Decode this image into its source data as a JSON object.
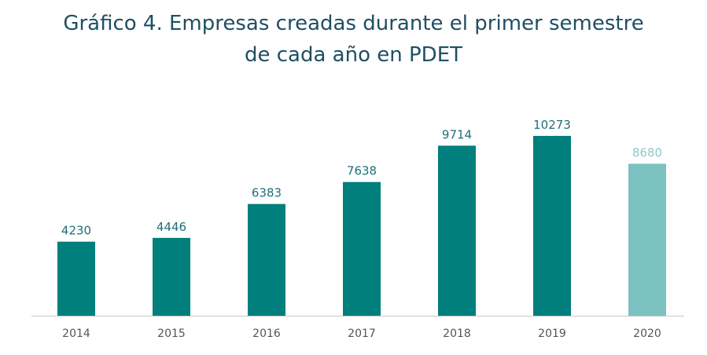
{
  "chart_data": {
    "type": "bar",
    "title_line1": "Gráfico 4. Empresas creadas durante el primer semestre",
    "title_line2": "de cada año en PDET",
    "categories": [
      "2014",
      "2015",
      "2016",
      "2017",
      "2018",
      "2019",
      "2020"
    ],
    "values": [
      4230,
      4446,
      6383,
      7638,
      9714,
      10273,
      8680
    ],
    "value_labels": [
      "4230",
      "4446",
      "6383",
      "7638",
      "9714",
      "10273",
      "8680"
    ],
    "xlabel": "",
    "ylabel": "",
    "ylim": [
      0,
      10273
    ],
    "grid": false,
    "legend": "none",
    "colors": {
      "bar": "#007f7d",
      "bar_highlight": "#7cc2c0",
      "value_label": "#1f6f7a",
      "value_label_highlight": "#8fc9c7",
      "axis": "#c8c8c8",
      "tick_label": "#555555",
      "title": "#1f4f63"
    },
    "highlight_categories": [
      "2020"
    ]
  }
}
